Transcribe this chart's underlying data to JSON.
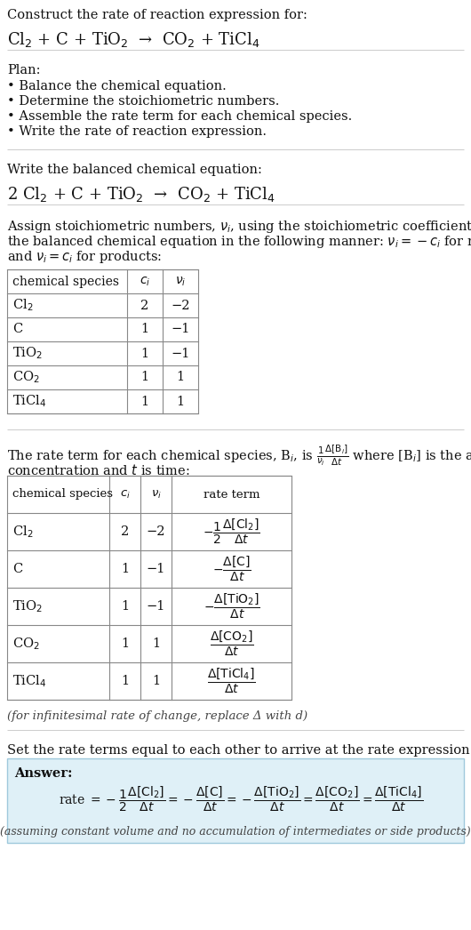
{
  "title_line1": "Construct the rate of reaction expression for:",
  "title_line2": "Cl$_2$ + C + TiO$_2$  →  CO$_2$ + TiCl$_4$",
  "plan_header": "Plan:",
  "plan_items": [
    "• Balance the chemical equation.",
    "• Determine the stoichiometric numbers.",
    "• Assemble the rate term for each chemical species.",
    "• Write the rate of reaction expression."
  ],
  "balanced_header": "Write the balanced chemical equation:",
  "balanced_eq": "2 Cl$_2$ + C + TiO$_2$  →  CO$_2$ + TiCl$_4$",
  "stoich_intro_parts": [
    "Assign stoichiometric numbers, $\\nu_i$, using the stoichiometric coefficients, $c_i$, from",
    "the balanced chemical equation in the following manner: $\\nu_i = -c_i$ for reactants",
    "and $\\nu_i = c_i$ for products:"
  ],
  "table1_headers": [
    "chemical species",
    "$c_i$",
    "$\\nu_i$"
  ],
  "table1_rows": [
    [
      "Cl$_2$",
      "2",
      "−2"
    ],
    [
      "C",
      "1",
      "−1"
    ],
    [
      "TiO$_2$",
      "1",
      "−1"
    ],
    [
      "CO$_2$",
      "1",
      "1"
    ],
    [
      "TiCl$_4$",
      "1",
      "1"
    ]
  ],
  "rate_intro_line1a": "The rate term for each chemical species, B$_i$, is ",
  "rate_intro_frac": "$\\dfrac{1}{\\nu_i}\\dfrac{\\Delta[\\mathrm{B}_i]}{\\Delta t}$",
  "rate_intro_line1b": " where [B$_i$] is the amount",
  "rate_intro_line2": "concentration and $t$ is time:",
  "table2_headers": [
    "chemical species",
    "$c_i$",
    "$\\nu_i$",
    "rate term"
  ],
  "table2_rows": [
    [
      "Cl$_2$",
      "2",
      "−2"
    ],
    [
      "C",
      "1",
      "−1"
    ],
    [
      "TiO$_2$",
      "1",
      "−1"
    ],
    [
      "CO$_2$",
      "1",
      "1"
    ],
    [
      "TiCl$_4$",
      "1",
      "1"
    ]
  ],
  "rate_terms": [
    "$-\\dfrac{1}{2}\\dfrac{\\Delta[\\mathrm{Cl_2}]}{\\Delta t}$",
    "$-\\dfrac{\\Delta[\\mathrm{C}]}{\\Delta t}$",
    "$-\\dfrac{\\Delta[\\mathrm{TiO_2}]}{\\Delta t}$",
    "$\\dfrac{\\Delta[\\mathrm{CO_2}]}{\\Delta t}$",
    "$\\dfrac{\\Delta[\\mathrm{TiCl_4}]}{\\Delta t}$"
  ],
  "infinitesimal_note": "(for infinitesimal rate of change, replace Δ with d)",
  "set_equal_text": "Set the rate terms equal to each other to arrive at the rate expression:",
  "answer_label": "Answer:",
  "answer_rate": "rate $= -\\dfrac{1}{2}\\dfrac{\\Delta[\\mathrm{Cl_2}]}{\\Delta t} = -\\dfrac{\\Delta[\\mathrm{C}]}{\\Delta t} = -\\dfrac{\\Delta[\\mathrm{TiO_2}]}{\\Delta t} = \\dfrac{\\Delta[\\mathrm{CO_2}]}{\\Delta t} = \\dfrac{\\Delta[\\mathrm{TiCl_4}]}{\\Delta t}$",
  "answer_note": "(assuming constant volume and no accumulation of intermediates or side products)",
  "bg_color": "#ffffff",
  "table_line_color": "#888888",
  "answer_box_color": "#dff0f7",
  "answer_box_border": "#9fc9dc",
  "text_color": "#111111",
  "gray_text": "#444444",
  "rule_color": "#cccccc"
}
